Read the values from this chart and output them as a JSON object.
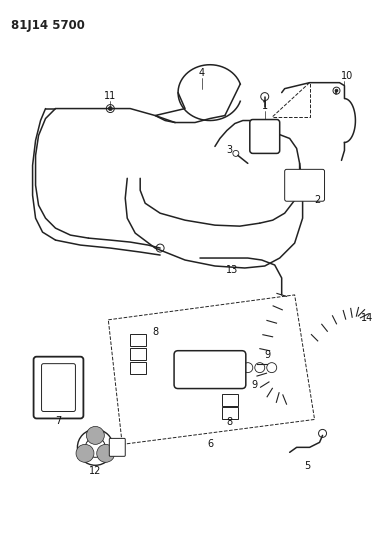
{
  "title_code": "81J14 5700",
  "bg_color": "#ffffff",
  "line_color": "#222222",
  "label_color": "#111111",
  "fig_width": 3.89,
  "fig_height": 5.33,
  "dpi": 100,
  "title_fontsize": 8.5,
  "label_fontsize": 7.0
}
